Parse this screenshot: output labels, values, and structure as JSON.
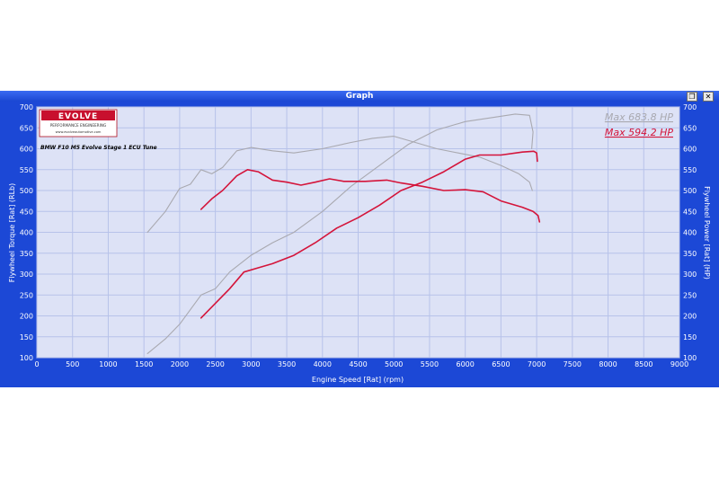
{
  "window": {
    "title": "Graph",
    "restore_symbol": "❐",
    "close_symbol": "✕"
  },
  "logo": {
    "brand": "EVOLVE",
    "tagline": "PERFORMANCE ENGINEERING",
    "url": "www.evolveautomotive.com"
  },
  "chart_data": {
    "type": "line",
    "subtitle": "BMW F10 M5 Evolve Stage 1 ECU Tune",
    "xlabel": "Engine Speed [Rat] (rpm)",
    "ylabel_left": "Flywheel Torque [Rat] (RLb)",
    "ylabel_right": "Flywheel Power [Rat] (HP)",
    "xlim": [
      0,
      9000
    ],
    "ylim": [
      100,
      700
    ],
    "xticks": [
      0,
      500,
      1000,
      1500,
      2000,
      2500,
      3000,
      3500,
      4000,
      4500,
      5000,
      5500,
      6000,
      6500,
      7000,
      7500,
      8000,
      8500,
      9000
    ],
    "yticks": [
      100,
      150,
      200,
      250,
      300,
      350,
      400,
      450,
      500,
      550,
      600,
      650,
      700
    ],
    "grid": true,
    "colors": {
      "plot_bg": "#dde2f6",
      "grid": "#b7c2ea",
      "frame": "#1c48d6",
      "tuned": "#d4143a",
      "stock": "#a9a9b0"
    },
    "annotations": [
      {
        "text": "Max 683.8 HP",
        "color": "#a9a9b0"
      },
      {
        "text": "Max 594.2 HP",
        "color": "#d4143a"
      }
    ],
    "series": [
      {
        "id": "stock-torque",
        "color": "#a9a9b0",
        "x": [
          1550,
          1800,
          2000,
          2150,
          2300,
          2450,
          2600,
          2800,
          3000,
          3300,
          3600,
          4000,
          4400,
          4700,
          5000,
          5300,
          5600,
          5900,
          6200,
          6500,
          6750,
          6900,
          6940
        ],
        "y": [
          400,
          450,
          505,
          515,
          550,
          540,
          555,
          595,
          603,
          595,
          590,
          600,
          615,
          625,
          630,
          615,
          600,
          590,
          580,
          560,
          540,
          520,
          500
        ]
      },
      {
        "id": "stock-power",
        "color": "#a9a9b0",
        "x": [
          1550,
          1800,
          2000,
          2300,
          2500,
          2700,
          3000,
          3300,
          3600,
          4000,
          4400,
          4800,
          5200,
          5600,
          6000,
          6400,
          6700,
          6900,
          6950,
          6930
        ],
        "y": [
          110,
          145,
          180,
          250,
          265,
          305,
          345,
          375,
          400,
          450,
          510,
          560,
          610,
          645,
          665,
          675,
          683,
          680,
          640,
          600
        ]
      },
      {
        "id": "tuned-torque",
        "color": "#d4143a",
        "x": [
          2300,
          2450,
          2600,
          2800,
          2950,
          3100,
          3300,
          3500,
          3700,
          3900,
          4100,
          4300,
          4600,
          4900,
          5100,
          5400,
          5700,
          6000,
          6250,
          6500,
          6800,
          6950,
          7020,
          7040
        ],
        "y": [
          455,
          480,
          500,
          535,
          550,
          545,
          525,
          520,
          513,
          520,
          528,
          522,
          522,
          525,
          518,
          510,
          500,
          502,
          497,
          475,
          460,
          450,
          440,
          425
        ]
      },
      {
        "id": "tuned-power",
        "color": "#d4143a",
        "x": [
          2300,
          2500,
          2700,
          2900,
          3100,
          3300,
          3600,
          3900,
          4200,
          4500,
          4800,
          5100,
          5400,
          5700,
          6000,
          6200,
          6500,
          6800,
          6960,
          7000,
          7010
        ],
        "y": [
          195,
          230,
          265,
          305,
          315,
          325,
          345,
          375,
          410,
          435,
          465,
          500,
          520,
          545,
          575,
          585,
          585,
          592,
          594,
          590,
          570
        ]
      }
    ]
  }
}
